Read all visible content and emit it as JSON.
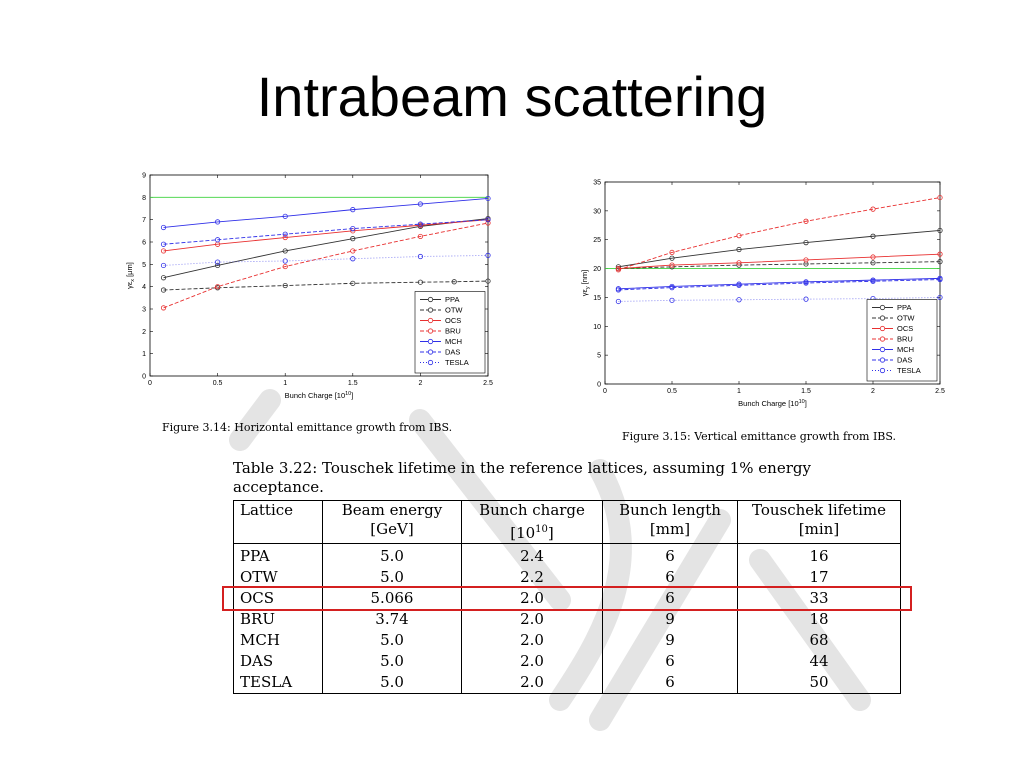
{
  "slide": {
    "title": "Intrabeam scattering"
  },
  "chart_data": [
    {
      "type": "line",
      "caption": "Figure 3.14: Horizontal emittance growth from IBS.",
      "xlabel": "Bunch Charge [10",
      "xlabel_sup": "10",
      "xlabel_end": "]",
      "ylabel": "γε",
      "ylabel_sub": "x",
      "ylabel_end": " [μm]",
      "xlim": [
        0,
        2.5
      ],
      "ylim": [
        0,
        9
      ],
      "xticks": [
        0,
        0.5,
        1,
        1.5,
        2,
        2.5
      ],
      "xtick_labels": [
        "0",
        "0.5",
        "1",
        "1.5",
        "2",
        "2.5"
      ],
      "yticks": [
        0,
        1,
        2,
        3,
        4,
        5,
        6,
        7,
        8,
        9
      ],
      "ytick_labels": [
        "0",
        "1",
        "2",
        "3",
        "4",
        "5",
        "6",
        "7",
        "8",
        "9"
      ],
      "grid": false,
      "legend_position": "bottom-right",
      "series": [
        {
          "name": "PPA",
          "color": "#333333",
          "dash": "solid",
          "marker": "circle",
          "x": [
            0.1,
            0.5,
            1,
            1.5,
            2,
            2.5
          ],
          "y": [
            4.4,
            4.95,
            5.6,
            6.15,
            6.7,
            7.05
          ]
        },
        {
          "name": "OTW",
          "color": "#333333",
          "dash": "dashed",
          "marker": "circle",
          "x": [
            0.1,
            0.5,
            1,
            1.5,
            2,
            2.25,
            2.5
          ],
          "y": [
            3.85,
            3.95,
            4.05,
            4.15,
            4.2,
            4.22,
            4.25
          ]
        },
        {
          "name": "OCS",
          "color": "#e83030",
          "dash": "solid",
          "marker": "circle",
          "x": [
            0.1,
            0.5,
            1,
            1.5,
            2,
            2.5
          ],
          "y": [
            5.6,
            5.9,
            6.2,
            6.5,
            6.75,
            7.0
          ]
        },
        {
          "name": "BRU",
          "color": "#e83030",
          "dash": "dashed",
          "marker": "circle",
          "x": [
            0.1,
            0.5,
            1,
            1.5,
            2,
            2.5
          ],
          "y": [
            3.05,
            4.0,
            4.9,
            5.6,
            6.25,
            6.85
          ]
        },
        {
          "name": "MCH",
          "color": "#3030e8",
          "dash": "solid",
          "marker": "circle",
          "x": [
            0.1,
            0.5,
            1,
            1.5,
            2,
            2.5
          ],
          "y": [
            6.65,
            6.9,
            7.15,
            7.45,
            7.7,
            7.95
          ]
        },
        {
          "name": "DAS",
          "color": "#3030e8",
          "dash": "dashed",
          "marker": "circle",
          "x": [
            0.1,
            0.5,
            1,
            1.5,
            2,
            2.5
          ],
          "y": [
            5.9,
            6.1,
            6.35,
            6.6,
            6.8,
            7.0
          ]
        },
        {
          "name": "TESLA",
          "color": "#3030e8",
          "dash": "dotted",
          "marker": "circle",
          "x": [
            0.1,
            0.5,
            1,
            1.5,
            2,
            2.5
          ],
          "y": [
            4.95,
            5.1,
            5.15,
            5.25,
            5.35,
            5.4
          ]
        }
      ],
      "reference_line": {
        "y": 8.0,
        "color": "#3cd23c"
      }
    },
    {
      "type": "line",
      "caption": "Figure 3.15: Vertical emittance growth from IBS.",
      "xlabel": "Bunch Charge [10",
      "xlabel_sup": "10",
      "xlabel_end": "]",
      "ylabel": "γε",
      "ylabel_sub": "y",
      "ylabel_end": " [nm]",
      "xlim": [
        0,
        2.5
      ],
      "ylim": [
        0,
        35
      ],
      "xticks": [
        0,
        0.5,
        1,
        1.5,
        2,
        2.5
      ],
      "xtick_labels": [
        "0",
        "0.5",
        "1",
        "1.5",
        "2",
        "2.5"
      ],
      "yticks": [
        0,
        5,
        10,
        15,
        20,
        25,
        30,
        35
      ],
      "ytick_labels": [
        "0",
        "5",
        "10",
        "15",
        "20",
        "25",
        "30",
        "35"
      ],
      "grid": false,
      "legend_position": "bottom-right",
      "series": [
        {
          "name": "PPA",
          "color": "#333333",
          "dash": "solid",
          "marker": "circle",
          "x": [
            0.1,
            0.5,
            1,
            1.5,
            2,
            2.5
          ],
          "y": [
            20.3,
            21.8,
            23.3,
            24.5,
            25.6,
            26.6
          ]
        },
        {
          "name": "OTW",
          "color": "#333333",
          "dash": "dashed",
          "marker": "circle",
          "x": [
            0.1,
            0.5,
            1,
            1.5,
            2,
            2.5
          ],
          "y": [
            20.0,
            20.3,
            20.6,
            20.8,
            21.0,
            21.2
          ]
        },
        {
          "name": "OCS",
          "color": "#e83030",
          "dash": "solid",
          "marker": "circle",
          "x": [
            0.1,
            0.5,
            1,
            1.5,
            2,
            2.5
          ],
          "y": [
            20.0,
            20.6,
            21.0,
            21.5,
            22.0,
            22.5
          ]
        },
        {
          "name": "BRU",
          "color": "#e83030",
          "dash": "dashed",
          "marker": "circle",
          "x": [
            0.1,
            0.5,
            1,
            1.5,
            2,
            2.5
          ],
          "y": [
            19.8,
            22.8,
            25.7,
            28.2,
            30.3,
            32.3
          ]
        },
        {
          "name": "MCH",
          "color": "#3030e8",
          "dash": "solid",
          "marker": "circle",
          "x": [
            0.1,
            0.5,
            1,
            1.5,
            2,
            2.5
          ],
          "y": [
            16.5,
            16.9,
            17.3,
            17.7,
            18.0,
            18.3
          ]
        },
        {
          "name": "DAS",
          "color": "#3030e8",
          "dash": "dashed",
          "marker": "circle",
          "x": [
            0.1,
            0.5,
            1,
            1.5,
            2,
            2.5
          ],
          "y": [
            16.3,
            16.7,
            17.1,
            17.5,
            17.8,
            18.1
          ]
        },
        {
          "name": "TESLA",
          "color": "#3030e8",
          "dash": "dotted",
          "marker": "circle",
          "x": [
            0.1,
            0.5,
            1,
            1.5,
            2,
            2.5
          ],
          "y": [
            14.3,
            14.5,
            14.6,
            14.7,
            14.8,
            15.0
          ]
        }
      ],
      "reference_line": {
        "y": 20.0,
        "color": "#3cd23c"
      }
    }
  ],
  "table": {
    "caption": "Table 3.22: Touschek lifetime in the reference lattices, assuming 1% energy acceptance.",
    "headers": [
      [
        "Lattice",
        ""
      ],
      [
        "Beam energy",
        "[GeV]"
      ],
      [
        "Bunch charge",
        "[10",
        "10",
        "]"
      ],
      [
        "Bunch length",
        "[mm]"
      ],
      [
        "Touschek lifetime",
        "[min]"
      ]
    ],
    "rows": [
      [
        "PPA",
        "5.0",
        "2.4",
        "6",
        "16"
      ],
      [
        "OTW",
        "5.0",
        "2.2",
        "6",
        "17"
      ],
      [
        "OCS",
        "5.066",
        "2.0",
        "6",
        "33"
      ],
      [
        "BRU",
        "3.74",
        "2.0",
        "9",
        "18"
      ],
      [
        "MCH",
        "5.0",
        "2.0",
        "9",
        "68"
      ],
      [
        "DAS",
        "5.0",
        "2.0",
        "6",
        "44"
      ],
      [
        "TESLA",
        "5.0",
        "2.0",
        "6",
        "50"
      ]
    ],
    "highlight_row": 2,
    "highlight_color": "#d42020"
  }
}
